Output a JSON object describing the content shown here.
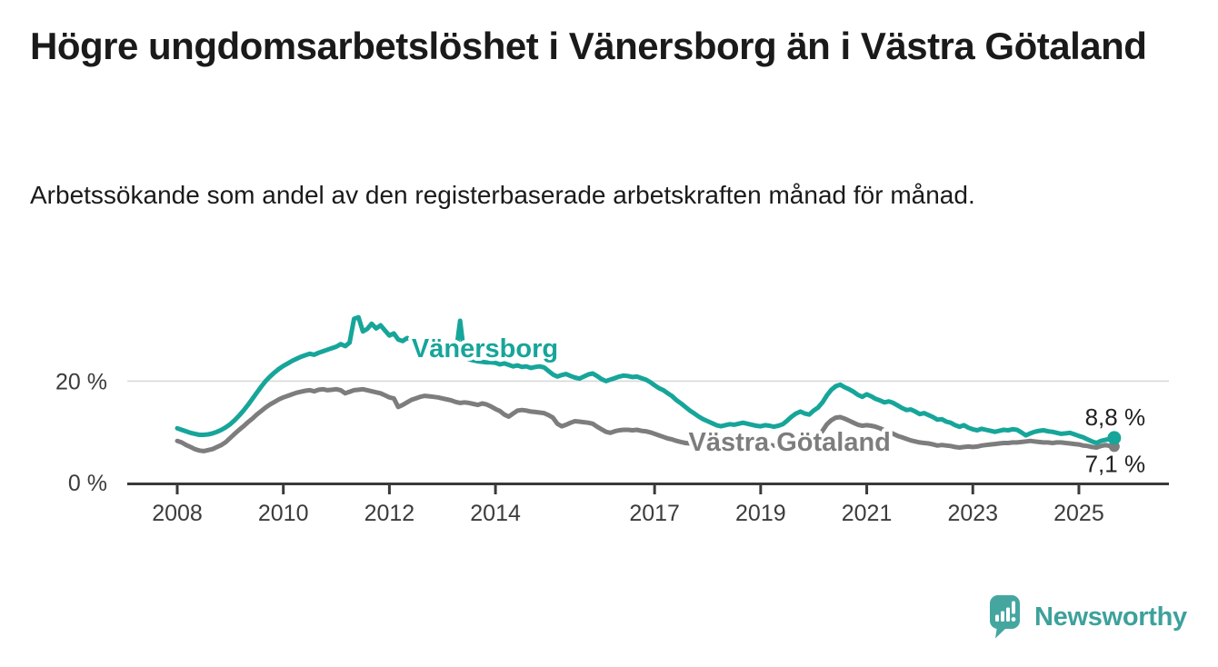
{
  "header": {
    "title": "Högre ungdomsarbetslöshet i Vänersborg än i Västra Götaland",
    "subtitle": "Arbetssökande som andel av den registerbaserade arbetskraften månad för månad."
  },
  "footer": {
    "brand": "Newsworthy",
    "logo_icon": "speech-bubble-bar-chart"
  },
  "colors": {
    "series_vanersborg": "#17a59a",
    "series_vastra_gotaland": "#7d7d7d",
    "axis_line": "#3a3a3a",
    "axis_text": "#3c3c3c",
    "gridline": "#d9d9d9",
    "title_text": "#1a1a1a",
    "value_label_text": "#222222",
    "brand_text": "#3da19b",
    "brand_icon": "#45a6a0"
  },
  "chart_data": {
    "type": "line",
    "title": "Högre ungdomsarbetslöshet i Vänersborg än i Västra Götaland",
    "subtitle": "Arbetssökande som andel av den registerbaserade arbetskraften månad för månad.",
    "x_axis": {
      "unit": "year-month",
      "tick_years": [
        2008,
        2010,
        2012,
        2014,
        2017,
        2019,
        2021,
        2023,
        2025
      ],
      "tick_labels": [
        "2008",
        "2010",
        "2012",
        "2014",
        "2017",
        "2019",
        "2021",
        "2023",
        "2025"
      ]
    },
    "y_axis": {
      "unit": "percent",
      "ticks": [
        0,
        20
      ],
      "tick_labels": [
        "0 %",
        "20 %"
      ],
      "range": [
        0,
        34
      ],
      "grid_at": [
        20
      ]
    },
    "legend_position": "inline-labels",
    "series_start_year": 2008,
    "series_step_years": 0.0833333,
    "series": [
      {
        "name": "Vänersborg",
        "color": "#17a59a",
        "end_label": "8,8 %",
        "end_value": 8.8,
        "end_dot": true,
        "values": [
          10.7,
          10.4,
          10.1,
          9.8,
          9.6,
          9.4,
          9.4,
          9.5,
          9.7,
          10.0,
          10.4,
          10.9,
          11.5,
          12.3,
          13.2,
          14.2,
          15.3,
          16.5,
          17.7,
          18.9,
          20.0,
          20.9,
          21.7,
          22.4,
          23.0,
          23.5,
          24.0,
          24.4,
          24.8,
          25.1,
          25.4,
          25.2,
          25.6,
          25.9,
          26.2,
          26.5,
          26.8,
          27.3,
          26.9,
          27.6,
          32.3,
          32.6,
          29.8,
          30.3,
          31.3,
          30.4,
          31.0,
          30.0,
          29.0,
          29.4,
          28.2,
          27.9,
          28.5,
          28.2,
          27.6,
          27.4,
          27.1,
          26.8,
          26.4,
          26.1,
          25.8,
          25.6,
          25.4,
          25.2,
          31.9,
          24.6,
          24.3,
          24.1,
          23.9,
          23.8,
          23.7,
          23.7,
          23.6,
          23.3,
          23.5,
          23.2,
          22.9,
          23.1,
          22.8,
          22.9,
          22.6,
          22.8,
          22.9,
          22.7,
          22.0,
          21.3,
          20.9,
          21.2,
          21.4,
          21.0,
          20.7,
          20.5,
          20.9,
          21.3,
          21.5,
          21.0,
          20.4,
          20.0,
          20.3,
          20.6,
          20.9,
          21.1,
          21.0,
          20.8,
          20.9,
          20.6,
          20.3,
          19.8,
          19.2,
          18.6,
          18.2,
          17.6,
          17.0,
          16.2,
          15.6,
          14.9,
          14.2,
          13.6,
          13.0,
          12.5,
          12.1,
          11.7,
          11.3,
          11.1,
          11.3,
          11.5,
          11.4,
          11.6,
          11.8,
          11.6,
          11.4,
          11.2,
          11.1,
          11.3,
          11.2,
          11.0,
          11.2,
          11.5,
          12.2,
          13.0,
          13.6,
          14.0,
          13.6,
          13.4,
          14.2,
          14.8,
          15.8,
          17.2,
          18.3,
          19.0,
          19.3,
          18.8,
          18.4,
          17.9,
          17.3,
          16.9,
          17.4,
          17.0,
          16.5,
          16.2,
          15.8,
          16.0,
          15.7,
          15.2,
          14.7,
          14.3,
          14.4,
          14.0,
          13.5,
          13.7,
          13.3,
          12.9,
          12.4,
          12.5,
          12.0,
          11.8,
          11.3,
          11.0,
          11.3,
          10.8,
          10.5,
          10.3,
          10.6,
          10.4,
          10.2,
          10.0,
          10.2,
          10.4,
          10.3,
          10.5,
          10.4,
          9.9,
          9.3,
          9.7,
          10.0,
          10.2,
          10.3,
          10.1,
          10.0,
          9.8,
          9.6,
          9.7,
          9.8,
          9.5,
          9.2,
          8.9,
          8.5,
          8.1,
          7.8,
          8.2,
          8.4,
          8.6,
          8.8
        ]
      },
      {
        "name": "Västra Götaland",
        "color": "#7d7d7d",
        "end_label": "7,1 %",
        "end_value": 7.1,
        "end_dot": true,
        "values": [
          8.2,
          7.9,
          7.4,
          7.0,
          6.6,
          6.3,
          6.2,
          6.4,
          6.6,
          7.0,
          7.4,
          8.0,
          8.8,
          9.6,
          10.4,
          11.1,
          11.9,
          12.6,
          13.4,
          14.1,
          14.8,
          15.4,
          15.9,
          16.4,
          16.8,
          17.1,
          17.4,
          17.7,
          17.9,
          18.1,
          18.2,
          18.0,
          18.3,
          18.4,
          18.2,
          18.3,
          18.4,
          18.2,
          17.6,
          17.9,
          18.2,
          18.3,
          18.4,
          18.2,
          18.0,
          17.8,
          17.6,
          17.2,
          16.8,
          16.6,
          14.9,
          15.3,
          15.8,
          16.3,
          16.6,
          16.9,
          17.1,
          17.0,
          16.9,
          16.8,
          16.6,
          16.4,
          16.2,
          15.9,
          15.7,
          15.8,
          15.7,
          15.5,
          15.3,
          15.6,
          15.4,
          15.0,
          14.5,
          14.1,
          13.4,
          13.0,
          13.6,
          14.2,
          14.3,
          14.2,
          14.0,
          13.9,
          13.8,
          13.7,
          13.3,
          12.8,
          11.6,
          11.1,
          11.4,
          11.8,
          12.1,
          12.0,
          11.9,
          11.8,
          11.6,
          11.0,
          10.5,
          10.0,
          9.8,
          10.1,
          10.3,
          10.4,
          10.4,
          10.3,
          10.4,
          10.2,
          10.1,
          9.9,
          9.6,
          9.3,
          9.0,
          8.7,
          8.5,
          8.2,
          8.0,
          7.8,
          7.7,
          7.8,
          7.7,
          7.6,
          7.5,
          7.4,
          7.3,
          7.2,
          7.3,
          7.4,
          7.3,
          7.4,
          7.5,
          7.4,
          7.4,
          7.3,
          7.3,
          7.4,
          7.4,
          7.3,
          7.4,
          7.6,
          7.8,
          8.0,
          8.1,
          8.2,
          8.1,
          8.2,
          8.5,
          9.0,
          10.2,
          11.5,
          12.3,
          12.8,
          12.9,
          12.6,
          12.2,
          11.8,
          11.4,
          11.2,
          11.3,
          11.2,
          11.0,
          10.7,
          10.3,
          10.0,
          9.6,
          9.2,
          8.9,
          8.6,
          8.3,
          8.1,
          7.9,
          7.8,
          7.7,
          7.5,
          7.3,
          7.4,
          7.3,
          7.2,
          7.0,
          6.9,
          7.0,
          7.1,
          7.0,
          7.1,
          7.3,
          7.4,
          7.5,
          7.6,
          7.7,
          7.8,
          7.8,
          7.9,
          7.9,
          8.0,
          8.1,
          8.2,
          8.1,
          8.0,
          7.9,
          7.9,
          7.8,
          7.9,
          7.9,
          7.8,
          7.7,
          7.6,
          7.5,
          7.3,
          7.2,
          7.0,
          6.9,
          7.2,
          7.4,
          7.2,
          7.1
        ]
      }
    ],
    "series_labels": [
      {
        "text": "Vänersborg",
        "anchor_year": 2012.42,
        "anchor_value": 24.7,
        "color": "#17a59a"
      },
      {
        "text": "Västra Götaland",
        "anchor_year": 2017.64,
        "anchor_value": 6.3,
        "color": "#7d7d7d"
      }
    ]
  }
}
